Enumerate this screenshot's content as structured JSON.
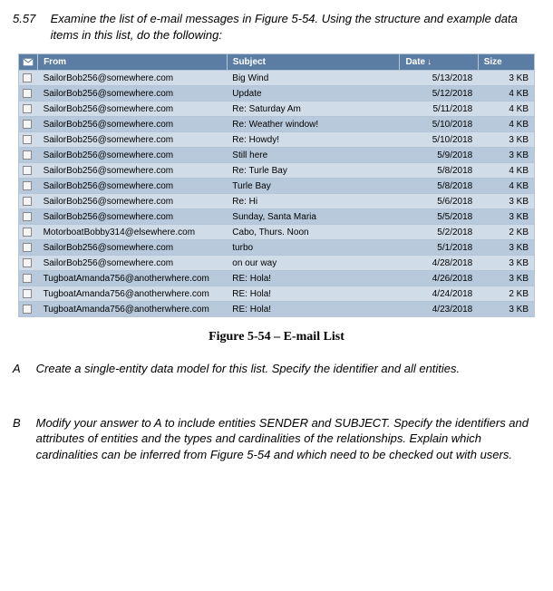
{
  "question": {
    "number": "5.57",
    "prompt": "Examine the list of e-mail messages in Figure 5-54. Using the structure and example data items in this list, do the following:"
  },
  "table": {
    "headers": {
      "from": "From",
      "subject": "Subject",
      "date": "Date",
      "size": "Size",
      "sort_indicator": "↓"
    },
    "colors": {
      "header_bg": "#5b7ca3",
      "header_fg": "#ffffff",
      "row_odd": "#d1dce9",
      "row_even": "#b7c9db",
      "border": "#b6c5d6"
    },
    "rows": [
      {
        "from": "SailorBob256@somewhere.com",
        "subject": "Big Wind",
        "date": "5/13/2018",
        "size": "3 KB"
      },
      {
        "from": "SailorBob256@somewhere.com",
        "subject": "Update",
        "date": "5/12/2018",
        "size": "4 KB"
      },
      {
        "from": "SailorBob256@somewhere.com",
        "subject": "Re: Saturday Am",
        "date": "5/11/2018",
        "size": "4 KB"
      },
      {
        "from": "SailorBob256@somewhere.com",
        "subject": "Re: Weather window!",
        "date": "5/10/2018",
        "size": "4 KB"
      },
      {
        "from": "SailorBob256@somewhere.com",
        "subject": "Re: Howdy!",
        "date": "5/10/2018",
        "size": "3 KB"
      },
      {
        "from": "SailorBob256@somewhere.com",
        "subject": "Still here",
        "date": "5/9/2018",
        "size": "3 KB"
      },
      {
        "from": "SailorBob256@somewhere.com",
        "subject": "Re: Turle Bay",
        "date": "5/8/2018",
        "size": "4 KB"
      },
      {
        "from": "SailorBob256@somewhere.com",
        "subject": "Turle Bay",
        "date": "5/8/2018",
        "size": "4 KB"
      },
      {
        "from": "SailorBob256@somewhere.com",
        "subject": "Re: Hi",
        "date": "5/6/2018",
        "size": "3 KB"
      },
      {
        "from": "SailorBob256@somewhere.com",
        "subject": "Sunday, Santa Maria",
        "date": "5/5/2018",
        "size": "3 KB"
      },
      {
        "from": "MotorboatBobby314@elsewhere.com",
        "subject": "Cabo, Thurs. Noon",
        "date": "5/2/2018",
        "size": "2 KB"
      },
      {
        "from": "SailorBob256@somewhere.com",
        "subject": "turbo",
        "date": "5/1/2018",
        "size": "3 KB"
      },
      {
        "from": "SailorBob256@somewhere.com",
        "subject": "on our way",
        "date": "4/28/2018",
        "size": "3 KB"
      },
      {
        "from": "TugboatAmanda756@anotherwhere.com",
        "subject": "RE: Hola!",
        "date": "4/26/2018",
        "size": "3 KB"
      },
      {
        "from": "TugboatAmanda756@anotherwhere.com",
        "subject": "RE: Hola!",
        "date": "4/24/2018",
        "size": "2 KB"
      },
      {
        "from": "TugboatAmanda756@anotherwhere.com",
        "subject": "RE: Hola!",
        "date": "4/23/2018",
        "size": "3 KB"
      }
    ]
  },
  "figure_caption": "Figure 5-54 – E-mail List",
  "parts": {
    "A": {
      "letter": "A",
      "text": "Create a single-entity data model for this list. Specify the identifier and all entities."
    },
    "B": {
      "letter": "B",
      "text": "Modify your answer to A to include entities SENDER and SUBJECT. Specify the identifiers and attributes of entities and the types and cardinalities of the relationships. Explain which cardinalities can be inferred from Figure 5-54 and which need to be checked out with users."
    }
  }
}
